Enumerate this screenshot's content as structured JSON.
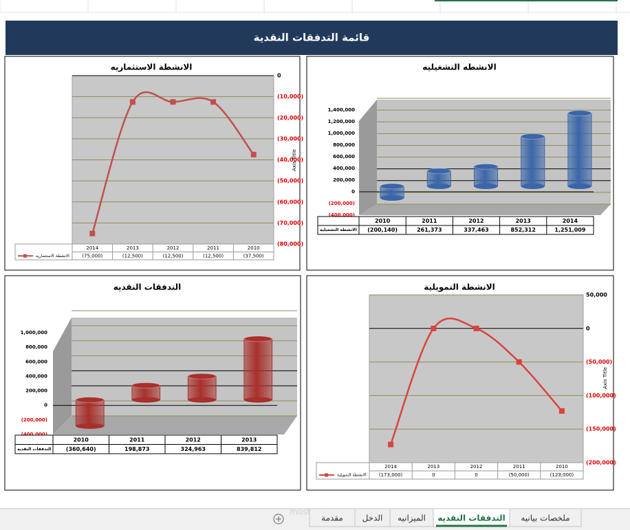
{
  "header": {
    "title": "قائمة التدفقات النقدية"
  },
  "chart_data": [
    {
      "type": "line",
      "title": "الانشطة الاستثماريه",
      "y_axis_title": "Axis Title",
      "categories": [
        "2014",
        "2013",
        "2012",
        "2011",
        "2010"
      ],
      "series": [
        {
          "name": "الانشطة الاستثماريه",
          "color": "#c0504d",
          "values": [
            -75000,
            -12500,
            -12500,
            -12500,
            -37500
          ],
          "value_labels": [
            "(75,000)",
            "(12,500)",
            "(12,500)",
            "(12,500)",
            "(37,500)"
          ]
        }
      ],
      "ylim": [
        -80000,
        0
      ],
      "yticks": [
        0,
        {
          "value": -10000,
          "label": "(10,000)"
        },
        {
          "value": -20000,
          "label": "(20,000)"
        },
        {
          "value": -30000,
          "label": "(30,000)"
        },
        {
          "value": -40000,
          "label": "(40,000)"
        },
        {
          "value": -50000,
          "label": "(50,000)"
        },
        {
          "value": -60000,
          "label": "(60,000)"
        },
        {
          "value": -70000,
          "label": "(70,000)"
        },
        {
          "value": -80000,
          "label": "(80,000)"
        }
      ],
      "grid": true
    },
    {
      "type": "bar",
      "title": "الانشطه التشغيليه",
      "categories": [
        "2010",
        "2011",
        "2012",
        "2013",
        "2014"
      ],
      "series": [
        {
          "name": "الانشطه التشغيليه",
          "color": "#3a66a8",
          "values": [
            -200140,
            261373,
            337463,
            852312,
            1251009
          ],
          "value_labels": [
            "(200,140)",
            "261,373",
            "337,463",
            "852,312",
            "1,251,009"
          ]
        }
      ],
      "ylim": [
        -400000,
        1400000
      ],
      "yticks": [
        {
          "value": 1400000,
          "label": "1,400,000"
        },
        {
          "value": 1200000,
          "label": "1,200,000"
        },
        {
          "value": 1000000,
          "label": "1,000,000"
        },
        {
          "value": 800000,
          "label": "800,000"
        },
        {
          "value": 600000,
          "label": "600,000"
        },
        {
          "value": 400000,
          "label": "400,000"
        },
        {
          "value": 200000,
          "label": "200,000"
        },
        0,
        {
          "value": -200000,
          "label": "(200,000)"
        },
        {
          "value": -400000,
          "label": "(400,000)"
        }
      ],
      "grid": true
    },
    {
      "type": "bar",
      "title": "التدفقات النقديه",
      "categories": [
        "2010",
        "2011",
        "2012",
        "2013"
      ],
      "series": [
        {
          "name": "التدفقات النقديه",
          "color": "#a8302c",
          "values": [
            -360640,
            198873,
            324963,
            839812
          ],
          "value_labels": [
            "(360,640)",
            "198,873",
            "324,963",
            "839,812"
          ]
        }
      ],
      "ylim": [
        -400000,
        1000000
      ],
      "yticks": [
        {
          "value": 1000000,
          "label": "1,000,000"
        },
        {
          "value": 800000,
          "label": "800,000"
        },
        {
          "value": 600000,
          "label": "600,000"
        },
        {
          "value": 400000,
          "label": "400,000"
        },
        {
          "value": 200000,
          "label": "200,000"
        },
        0,
        {
          "value": -200000,
          "label": "(200,000)"
        },
        {
          "value": -400000,
          "label": "(400,000)"
        }
      ],
      "grid": true
    },
    {
      "type": "line",
      "title": "الانشطة التمويلية",
      "y_axis_title": "Axis Title",
      "categories": [
        "2014",
        "2013",
        "2012",
        "2011",
        "2010"
      ],
      "series": [
        {
          "name": "الانشطة التمويلية",
          "color": "#d9433f",
          "values": [
            -173000,
            0,
            0,
            -50000,
            -123000
          ],
          "value_labels": [
            "(173,000)",
            "0",
            "0",
            "(50,000)",
            "(123,000)"
          ]
        }
      ],
      "ylim": [
        -200000,
        50000
      ],
      "yticks": [
        {
          "value": 50000,
          "label": "50,000"
        },
        0,
        {
          "value": -50000,
          "label": "(50,000)"
        },
        {
          "value": -100000,
          "label": "(100,000)"
        },
        {
          "value": -150000,
          "label": "(150,000)"
        },
        {
          "value": -200000,
          "label": "(200,000)"
        }
      ],
      "grid": true
    }
  ],
  "tabs": [
    "ملخصات بيانيه",
    "التدفقات النقديه",
    "الميزانيه",
    "الدخل",
    "مقدمة"
  ],
  "watermark": "mostaql.com"
}
